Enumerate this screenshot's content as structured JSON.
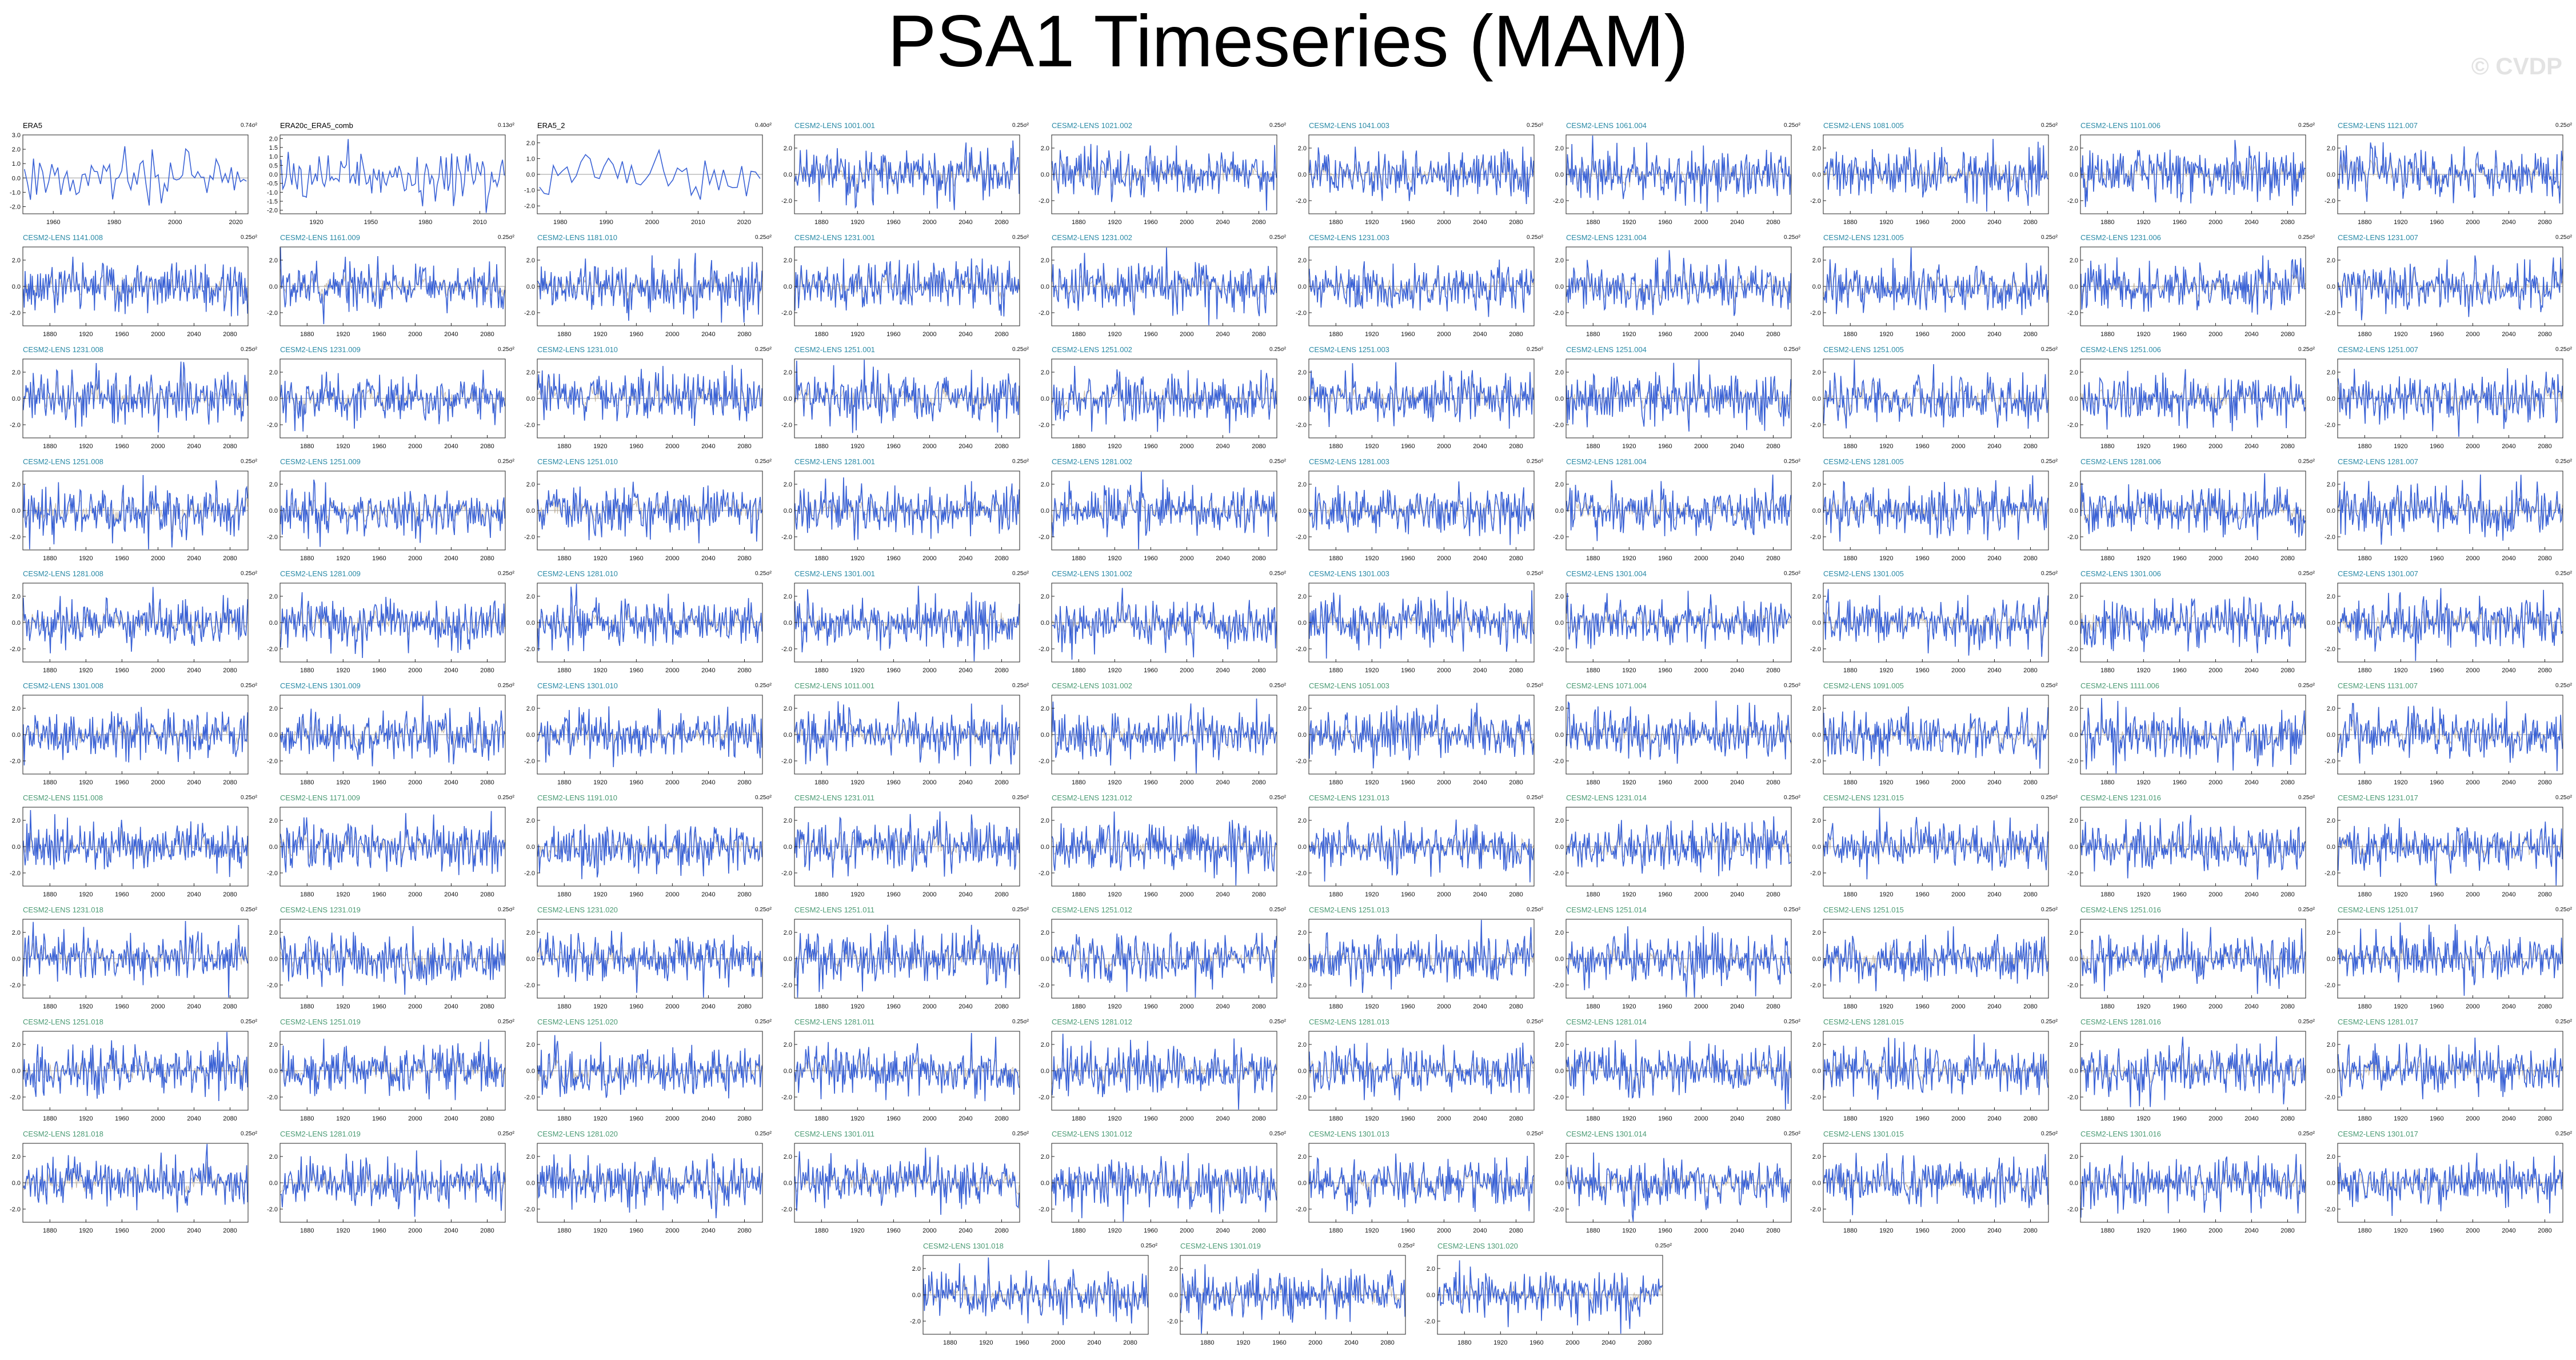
{
  "title": "PSA1 Timeseries (MAM)",
  "watermark": "© CVDP",
  "colors": {
    "line": "#3a62d6",
    "ensemble_band": "#b9a88c",
    "zero_line": "#999999",
    "frame": "#222222",
    "obs_title": "#000000",
    "lens_title": "#2a8aa6",
    "lens_title_alt": "#4a9a73"
  },
  "chart_data": {
    "type": "line",
    "rows": [
      [
        {
          "label": "ERA5",
          "right": "0.74σ²",
          "xticks": [
            "1960",
            "1980",
            "2000",
            "2020"
          ],
          "xlim": [
            1950,
            2024
          ],
          "yticks": [
            "3.0",
            "2.0",
            "1.0",
            "0.0",
            "-1.0",
            "-2.0"
          ],
          "ylim": [
            -2.5,
            3.0
          ],
          "kind": "obs"
        },
        {
          "label": "ERA20c_ERA5_comb",
          "right": "0.13σ²",
          "xticks": [
            "1920",
            "1950",
            "1980",
            "2010"
          ],
          "xlim": [
            1900,
            2024
          ],
          "yticks": [
            "2.0",
            "1.5",
            "1.0",
            "0.5",
            "0.0",
            "-0.5",
            "-1.0",
            "-1.5",
            "-2.0"
          ],
          "ylim": [
            -2.2,
            2.2
          ],
          "kind": "obs"
        },
        {
          "label": "ERA5_2",
          "right": "0.40σ²",
          "xticks": [
            "1980",
            "1990",
            "2000",
            "2010",
            "2020"
          ],
          "xlim": [
            1975,
            2024
          ],
          "yticks": [
            "2.0",
            "1.0",
            "0.0",
            "-1.0",
            "-2.0"
          ],
          "ylim": [
            -2.5,
            2.5
          ],
          "kind": "obs"
        },
        {
          "label": "CESM2-LENS 1001.001",
          "right": "0.25σ²",
          "kind": "lens"
        },
        {
          "label": "CESM2-LENS 1021.002",
          "right": "0.25σ²",
          "kind": "lens"
        },
        {
          "label": "CESM2-LENS 1041.003",
          "right": "0.25σ²",
          "kind": "lens"
        },
        {
          "label": "CESM2-LENS 1061.004",
          "right": "0.25σ²",
          "kind": "lens"
        },
        {
          "label": "CESM2-LENS 1081.005",
          "right": "0.25σ²",
          "kind": "lens"
        },
        {
          "label": "CESM2-LENS 1101.006",
          "right": "0.25σ²",
          "kind": "lens"
        },
        {
          "label": "CESM2-LENS 1121.007",
          "right": "0.25σ²",
          "kind": "lens"
        }
      ],
      [
        {
          "label": "CESM2-LENS 1141.008",
          "right": "0.25σ²",
          "kind": "lens"
        },
        {
          "label": "CESM2-LENS 1161.009",
          "right": "0.25σ²",
          "kind": "lens"
        },
        {
          "label": "CESM2-LENS 1181.010",
          "right": "0.25σ²",
          "kind": "lens"
        },
        {
          "label": "CESM2-LENS 1231.001",
          "right": "0.25σ²",
          "kind": "lens"
        },
        {
          "label": "CESM2-LENS 1231.002",
          "right": "0.25σ²",
          "kind": "lens"
        },
        {
          "label": "CESM2-LENS 1231.003",
          "right": "0.25σ²",
          "kind": "lens"
        },
        {
          "label": "CESM2-LENS 1231.004",
          "right": "0.25σ²",
          "kind": "lens"
        },
        {
          "label": "CESM2-LENS 1231.005",
          "right": "0.25σ²",
          "kind": "lens"
        },
        {
          "label": "CESM2-LENS 1231.006",
          "right": "0.25σ²",
          "kind": "lens"
        },
        {
          "label": "CESM2-LENS 1231.007",
          "right": "0.25σ²",
          "kind": "lens"
        }
      ],
      [
        {
          "label": "CESM2-LENS 1231.008",
          "right": "0.25σ²",
          "kind": "lens"
        },
        {
          "label": "CESM2-LENS 1231.009",
          "right": "0.25σ²",
          "kind": "lens"
        },
        {
          "label": "CESM2-LENS 1231.010",
          "right": "0.25σ²",
          "kind": "lens"
        },
        {
          "label": "CESM2-LENS 1251.001",
          "right": "0.25σ²",
          "kind": "lens"
        },
        {
          "label": "CESM2-LENS 1251.002",
          "right": "0.25σ²",
          "kind": "lens"
        },
        {
          "label": "CESM2-LENS 1251.003",
          "right": "0.25σ²",
          "kind": "lens"
        },
        {
          "label": "CESM2-LENS 1251.004",
          "right": "0.25σ²",
          "kind": "lens"
        },
        {
          "label": "CESM2-LENS 1251.005",
          "right": "0.25σ²",
          "kind": "lens"
        },
        {
          "label": "CESM2-LENS 1251.006",
          "right": "0.25σ²",
          "kind": "lens"
        },
        {
          "label": "CESM2-LENS 1251.007",
          "right": "0.25σ²",
          "kind": "lens"
        }
      ],
      [
        {
          "label": "CESM2-LENS 1251.008",
          "right": "0.25σ²",
          "kind": "lens"
        },
        {
          "label": "CESM2-LENS 1251.009",
          "right": "0.25σ²",
          "kind": "lens"
        },
        {
          "label": "CESM2-LENS 1251.010",
          "right": "0.25σ²",
          "kind": "lens"
        },
        {
          "label": "CESM2-LENS 1281.001",
          "right": "0.25σ²",
          "kind": "lens"
        },
        {
          "label": "CESM2-LENS 1281.002",
          "right": "0.25σ²",
          "kind": "lens"
        },
        {
          "label": "CESM2-LENS 1281.003",
          "right": "0.25σ²",
          "kind": "lens"
        },
        {
          "label": "CESM2-LENS 1281.004",
          "right": "0.25σ²",
          "kind": "lens"
        },
        {
          "label": "CESM2-LENS 1281.005",
          "right": "0.25σ²",
          "kind": "lens"
        },
        {
          "label": "CESM2-LENS 1281.006",
          "right": "0.25σ²",
          "kind": "lens"
        },
        {
          "label": "CESM2-LENS 1281.007",
          "right": "0.25σ²",
          "kind": "lens"
        }
      ],
      [
        {
          "label": "CESM2-LENS 1281.008",
          "right": "0.25σ²",
          "kind": "lens"
        },
        {
          "label": "CESM2-LENS 1281.009",
          "right": "0.25σ²",
          "kind": "lens"
        },
        {
          "label": "CESM2-LENS 1281.010",
          "right": "0.25σ²",
          "kind": "lens"
        },
        {
          "label": "CESM2-LENS 1301.001",
          "right": "0.25σ²",
          "kind": "lens"
        },
        {
          "label": "CESM2-LENS 1301.002",
          "right": "0.25σ²",
          "kind": "lens"
        },
        {
          "label": "CESM2-LENS 1301.003",
          "right": "0.25σ²",
          "kind": "lens"
        },
        {
          "label": "CESM2-LENS 1301.004",
          "right": "0.25σ²",
          "kind": "lens"
        },
        {
          "label": "CESM2-LENS 1301.005",
          "right": "0.25σ²",
          "kind": "lens"
        },
        {
          "label": "CESM2-LENS 1301.006",
          "right": "0.25σ²",
          "kind": "lens"
        },
        {
          "label": "CESM2-LENS 1301.007",
          "right": "0.25σ²",
          "kind": "lens"
        }
      ],
      [
        {
          "label": "CESM2-LENS 1301.008",
          "right": "0.25σ²",
          "kind": "lens"
        },
        {
          "label": "CESM2-LENS 1301.009",
          "right": "0.25σ²",
          "kind": "lens"
        },
        {
          "label": "CESM2-LENS 1301.010",
          "right": "0.25σ²",
          "kind": "lens"
        },
        {
          "label": "CESM2-LENS 1011.001",
          "right": "0.25σ²",
          "kind": "lens2"
        },
        {
          "label": "CESM2-LENS 1031.002",
          "right": "0.25σ²",
          "kind": "lens2"
        },
        {
          "label": "CESM2-LENS 1051.003",
          "right": "0.25σ²",
          "kind": "lens2"
        },
        {
          "label": "CESM2-LENS 1071.004",
          "right": "0.25σ²",
          "kind": "lens2"
        },
        {
          "label": "CESM2-LENS 1091.005",
          "right": "0.25σ²",
          "kind": "lens2"
        },
        {
          "label": "CESM2-LENS 1111.006",
          "right": "0.25σ²",
          "kind": "lens2"
        },
        {
          "label": "CESM2-LENS 1131.007",
          "right": "0.25σ²",
          "kind": "lens2"
        }
      ],
      [
        {
          "label": "CESM2-LENS 1151.008",
          "right": "0.25σ²",
          "kind": "lens2"
        },
        {
          "label": "CESM2-LENS 1171.009",
          "right": "0.25σ²",
          "kind": "lens2"
        },
        {
          "label": "CESM2-LENS 1191.010",
          "right": "0.25σ²",
          "kind": "lens2"
        },
        {
          "label": "CESM2-LENS 1231.011",
          "right": "0.25σ²",
          "kind": "lens2"
        },
        {
          "label": "CESM2-LENS 1231.012",
          "right": "0.25σ²",
          "kind": "lens2"
        },
        {
          "label": "CESM2-LENS 1231.013",
          "right": "0.25σ²",
          "kind": "lens2"
        },
        {
          "label": "CESM2-LENS 1231.014",
          "right": "0.25σ²",
          "kind": "lens2"
        },
        {
          "label": "CESM2-LENS 1231.015",
          "right": "0.25σ²",
          "kind": "lens2"
        },
        {
          "label": "CESM2-LENS 1231.016",
          "right": "0.25σ²",
          "kind": "lens2"
        },
        {
          "label": "CESM2-LENS 1231.017",
          "right": "0.25σ²",
          "kind": "lens2"
        }
      ],
      [
        {
          "label": "CESM2-LENS 1231.018",
          "right": "0.25σ²",
          "kind": "lens2"
        },
        {
          "label": "CESM2-LENS 1231.019",
          "right": "0.25σ²",
          "kind": "lens2"
        },
        {
          "label": "CESM2-LENS 1231.020",
          "right": "0.25σ²",
          "kind": "lens2"
        },
        {
          "label": "CESM2-LENS 1251.011",
          "right": "0.25σ²",
          "kind": "lens2"
        },
        {
          "label": "CESM2-LENS 1251.012",
          "right": "0.25σ²",
          "kind": "lens2"
        },
        {
          "label": "CESM2-LENS 1251.013",
          "right": "0.25σ²",
          "kind": "lens2"
        },
        {
          "label": "CESM2-LENS 1251.014",
          "right": "0.25σ²",
          "kind": "lens2"
        },
        {
          "label": "CESM2-LENS 1251.015",
          "right": "0.25σ²",
          "kind": "lens2"
        },
        {
          "label": "CESM2-LENS 1251.016",
          "right": "0.25σ²",
          "kind": "lens2"
        },
        {
          "label": "CESM2-LENS 1251.017",
          "right": "0.25σ²",
          "kind": "lens2"
        }
      ],
      [
        {
          "label": "CESM2-LENS 1251.018",
          "right": "0.25σ²",
          "kind": "lens2"
        },
        {
          "label": "CESM2-LENS 1251.019",
          "right": "0.25σ²",
          "kind": "lens2"
        },
        {
          "label": "CESM2-LENS 1251.020",
          "right": "0.25σ²",
          "kind": "lens2"
        },
        {
          "label": "CESM2-LENS 1281.011",
          "right": "0.25σ²",
          "kind": "lens2"
        },
        {
          "label": "CESM2-LENS 1281.012",
          "right": "0.25σ²",
          "kind": "lens2"
        },
        {
          "label": "CESM2-LENS 1281.013",
          "right": "0.25σ²",
          "kind": "lens2"
        },
        {
          "label": "CESM2-LENS 1281.014",
          "right": "0.25σ²",
          "kind": "lens2"
        },
        {
          "label": "CESM2-LENS 1281.015",
          "right": "0.25σ²",
          "kind": "lens2"
        },
        {
          "label": "CESM2-LENS 1281.016",
          "right": "0.25σ²",
          "kind": "lens2"
        },
        {
          "label": "CESM2-LENS 1281.017",
          "right": "0.25σ²",
          "kind": "lens2"
        }
      ],
      [
        {
          "label": "CESM2-LENS 1281.018",
          "right": "0.25σ²",
          "kind": "lens2"
        },
        {
          "label": "CESM2-LENS 1281.019",
          "right": "0.25σ²",
          "kind": "lens2"
        },
        {
          "label": "CESM2-LENS 1281.020",
          "right": "0.25σ²",
          "kind": "lens2"
        },
        {
          "label": "CESM2-LENS 1301.011",
          "right": "0.25σ²",
          "kind": "lens2"
        },
        {
          "label": "CESM2-LENS 1301.012",
          "right": "0.25σ²",
          "kind": "lens2"
        },
        {
          "label": "CESM2-LENS 1301.013",
          "right": "0.25σ²",
          "kind": "lens2"
        },
        {
          "label": "CESM2-LENS 1301.014",
          "right": "0.25σ²",
          "kind": "lens2"
        },
        {
          "label": "CESM2-LENS 1301.015",
          "right": "0.25σ²",
          "kind": "lens2"
        },
        {
          "label": "CESM2-LENS 1301.016",
          "right": "0.25σ²",
          "kind": "lens2"
        },
        {
          "label": "CESM2-LENS 1301.017",
          "right": "0.25σ²",
          "kind": "lens2"
        }
      ],
      [
        {
          "label": "CESM2-LENS 1301.018",
          "right": "0.25σ²",
          "kind": "lens2"
        },
        {
          "label": "CESM2-LENS 1301.019",
          "right": "0.25σ²",
          "kind": "lens2"
        },
        {
          "label": "CESM2-LENS 1301.020",
          "right": "0.25σ²",
          "kind": "lens2"
        }
      ]
    ],
    "lens_defaults": {
      "xticks": [
        "1880",
        "1920",
        "1960",
        "2000",
        "2040",
        "2080"
      ],
      "xlim": [
        1850,
        2100
      ],
      "yticks": [
        "2.0",
        "0.0",
        "-2.0"
      ],
      "ylim": [
        -3.0,
        3.0
      ]
    }
  }
}
